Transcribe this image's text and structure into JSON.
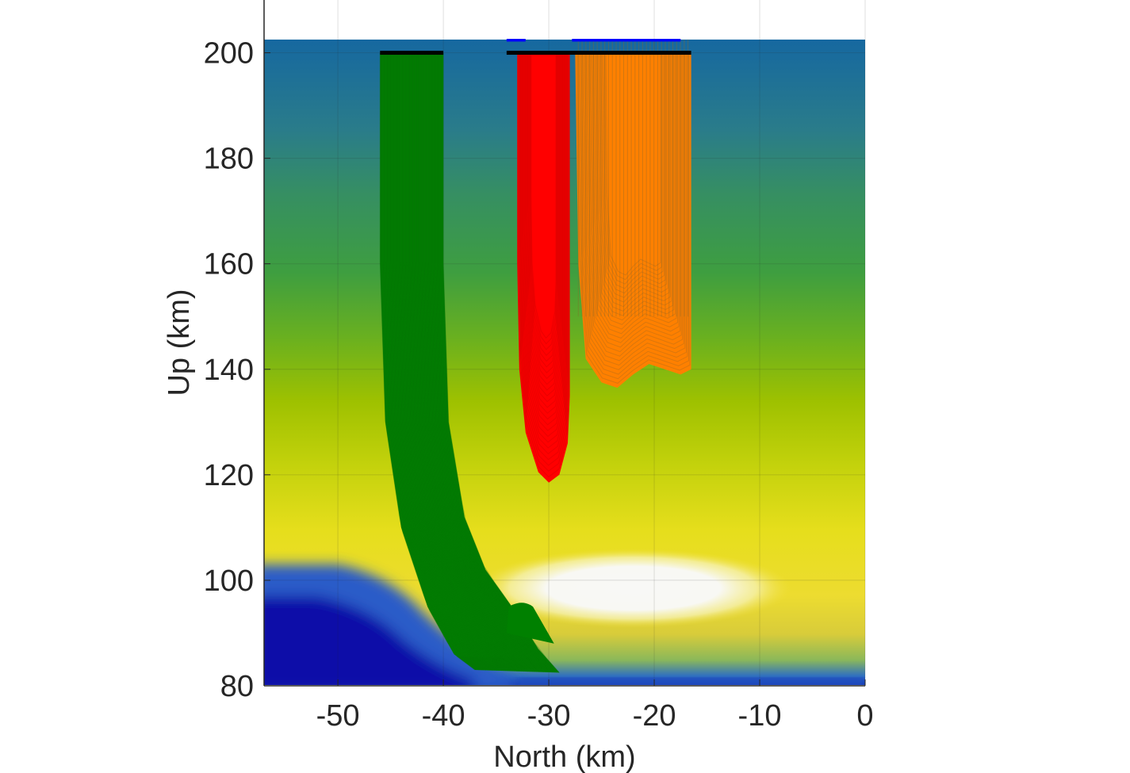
{
  "chart_data": {
    "type": "heatmap",
    "title": "",
    "xlabel": "North (km)",
    "ylabel": "Up (km)",
    "xlim": [
      -57,
      0
    ],
    "ylim": [
      80,
      210
    ],
    "xticks": [
      -50,
      -40,
      -30,
      -20,
      -10,
      0
    ],
    "xtick_labels": [
      "-50",
      "-40",
      "-30",
      "-20",
      "-10",
      "0"
    ],
    "yticks": [
      80,
      100,
      120,
      140,
      160,
      180,
      200
    ],
    "ytick_labels": [
      "80",
      "100",
      "120",
      "140",
      "160",
      "180",
      "200"
    ],
    "grid": true,
    "background_field": {
      "description_colormap": "parula-like",
      "top_km": 202.5,
      "low_region": {
        "north_km": [
          -57,
          -42
        ],
        "up_km": [
          80,
          102
        ],
        "color": "#0a0aa8"
      },
      "bright_region": {
        "north_center_km": -22,
        "up_center_km": 98.5,
        "color": "#f7f7f5"
      }
    },
    "series": [
      {
        "color": "#008000",
        "start_north_km": [
          -46,
          -40
        ],
        "start_up_km": 200,
        "path_left": [
          [
            -46,
            200
          ],
          [
            -46,
            160
          ],
          [
            -45.5,
            130
          ],
          [
            -44,
            110
          ],
          [
            -41.5,
            95
          ],
          [
            -39,
            86
          ],
          [
            -37,
            83
          ]
        ],
        "path_right": [
          [
            -40,
            200
          ],
          [
            -40,
            160
          ],
          [
            -39.5,
            130
          ],
          [
            -38,
            112
          ],
          [
            -36,
            102
          ],
          [
            -33.5,
            95
          ],
          [
            -31,
            87
          ],
          [
            -29,
            82.5
          ]
        ],
        "min_up_km": 82
      },
      {
        "color": "#ff0000",
        "start_north_km": [
          -34,
          -27.5
        ],
        "start_up_km": 200,
        "outer_envelope": [
          [
            -33,
            200
          ],
          [
            -33,
            160
          ],
          [
            -32.8,
            140
          ],
          [
            -32.2,
            128
          ],
          [
            -31,
            120.5
          ],
          [
            -30,
            118.5
          ],
          [
            -29,
            120
          ],
          [
            -28.2,
            126
          ],
          [
            -28,
            135
          ],
          [
            -28,
            200
          ]
        ],
        "min_up_km": 118.5
      },
      {
        "color": "#ff8000",
        "start_north_km": [
          -27.5,
          -16.5
        ],
        "start_up_km": 200,
        "outer_envelope": [
          [
            -27.5,
            200
          ],
          [
            -27.2,
            160
          ],
          [
            -26.5,
            142
          ],
          [
            -25,
            137.5
          ],
          [
            -23.5,
            136.5
          ],
          [
            -22,
            139
          ],
          [
            -20.5,
            141
          ],
          [
            -19,
            140
          ],
          [
            -17.5,
            139
          ],
          [
            -16.5,
            140
          ],
          [
            -16.5,
            200
          ]
        ],
        "min_up_km": 136.5
      }
    ],
    "markers": [
      {
        "color": "#000000",
        "north_km": [
          -46,
          -40
        ],
        "up_km": 200
      },
      {
        "color": "#000000",
        "north_km": [
          -34,
          -16.5
        ],
        "up_km": 200
      },
      {
        "color": "#0000ff",
        "north_km": [
          -34,
          -32.2
        ],
        "up_km": 202.5
      },
      {
        "color": "#0000ff",
        "north_km": [
          -27.8,
          -17.5
        ],
        "up_km": 202.5
      }
    ]
  }
}
